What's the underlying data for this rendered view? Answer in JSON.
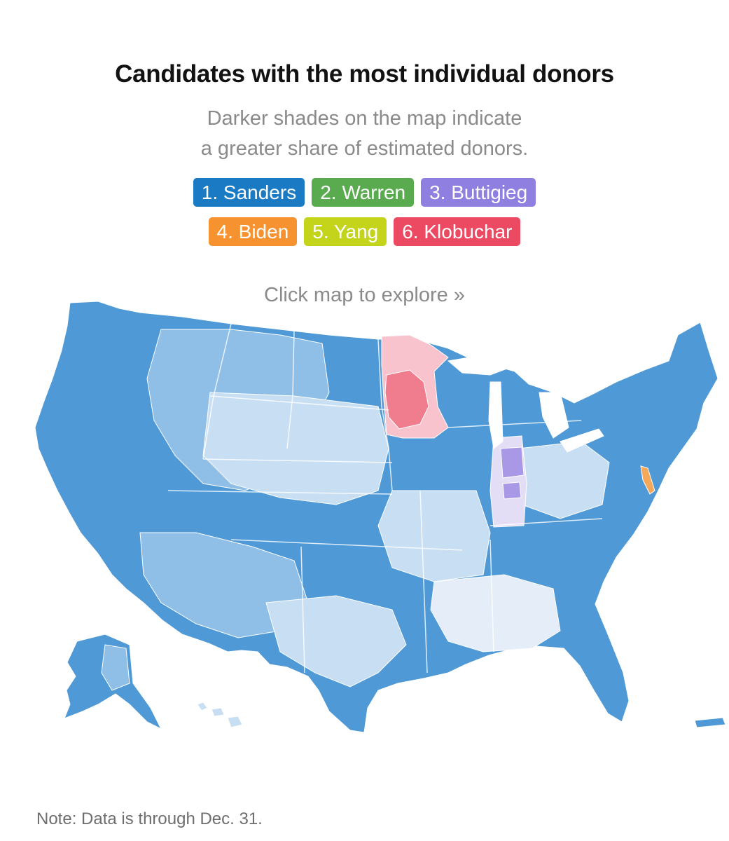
{
  "title": "Candidates with the most individual donors",
  "subtitle_line1": "Darker shades on the map indicate",
  "subtitle_line2": "a greater share of estimated donors.",
  "legend": [
    {
      "label": "1. Sanders",
      "color": "#1a7ac4"
    },
    {
      "label": "2. Warren",
      "color": "#5aab4f"
    },
    {
      "label": "3. Buttigieg",
      "color": "#8f7fe0"
    },
    {
      "label": "4. Biden",
      "color": "#f6922f"
    },
    {
      "label": "5. Yang",
      "color": "#c3d41b"
    },
    {
      "label": "6. Klobuchar",
      "color": "#ec4a62"
    }
  ],
  "explore_text": "Click map to explore »",
  "note": "Note: Data is through Dec. 31.",
  "map_colors": {
    "sanders_dark": "#4f9ad6",
    "sanders_mid": "#8fbfe6",
    "sanders_light": "#c8def2",
    "sanders_pale": "#e4edf8",
    "klobuchar_dark": "#f07d8e",
    "klobuchar_light": "#f8c3cc",
    "buttigieg_dark": "#a898e6",
    "buttigieg_light": "#e3ddf6",
    "biden": "#f6a85a",
    "border": "#ffffff"
  }
}
